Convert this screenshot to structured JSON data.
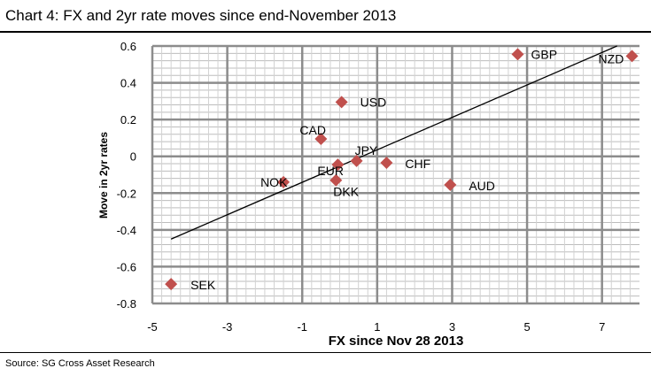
{
  "page": {
    "title": "Chart 4: FX and 2yr rate moves since end-November 2013",
    "source": "Source: SG Cross Asset Research"
  },
  "chart_data": {
    "type": "scatter",
    "xlabel": "FX  since  Nov 28 2013",
    "ylabel": "Move in 2yr rates",
    "xlim": [
      -5,
      8
    ],
    "ylim": [
      -0.8,
      0.6
    ],
    "x_ticks": [
      -5,
      -3,
      -1,
      1,
      3,
      5,
      7
    ],
    "y_ticks": [
      -0.8,
      -0.6,
      -0.4,
      -0.2,
      0,
      0.2,
      0.4,
      0.6
    ],
    "x_tick_labels": [
      "-5",
      "-3",
      "-1",
      "1",
      "3",
      "5",
      "7"
    ],
    "y_tick_labels": [
      "-0.8",
      "-0.6",
      "-0.4",
      "-0.2",
      "0",
      "0.2",
      "0.4",
      "0.6"
    ],
    "grid": true,
    "marker": "diamond",
    "marker_color": "#c0504d",
    "points": [
      {
        "label": "GBP",
        "x": 4.75,
        "y": 0.555
      },
      {
        "label": "NZD",
        "x": 7.8,
        "y": 0.545
      },
      {
        "label": "USD",
        "x": 0.05,
        "y": 0.295
      },
      {
        "label": "CAD",
        "x": -0.5,
        "y": 0.095
      },
      {
        "label": "JPY",
        "x": 0.45,
        "y": -0.025
      },
      {
        "label": "EUR",
        "x": -0.05,
        "y": -0.045
      },
      {
        "label": "CHF",
        "x": 1.25,
        "y": -0.035
      },
      {
        "label": "NOK",
        "x": -1.5,
        "y": -0.14
      },
      {
        "label": "DKK",
        "x": -0.1,
        "y": -0.13
      },
      {
        "label": "AUD",
        "x": 2.95,
        "y": -0.155
      },
      {
        "label": "SEK",
        "x": -4.5,
        "y": -0.695
      }
    ],
    "trendline": {
      "x": [
        -4.5,
        7.4
      ],
      "y": [
        -0.45,
        0.6
      ]
    }
  }
}
